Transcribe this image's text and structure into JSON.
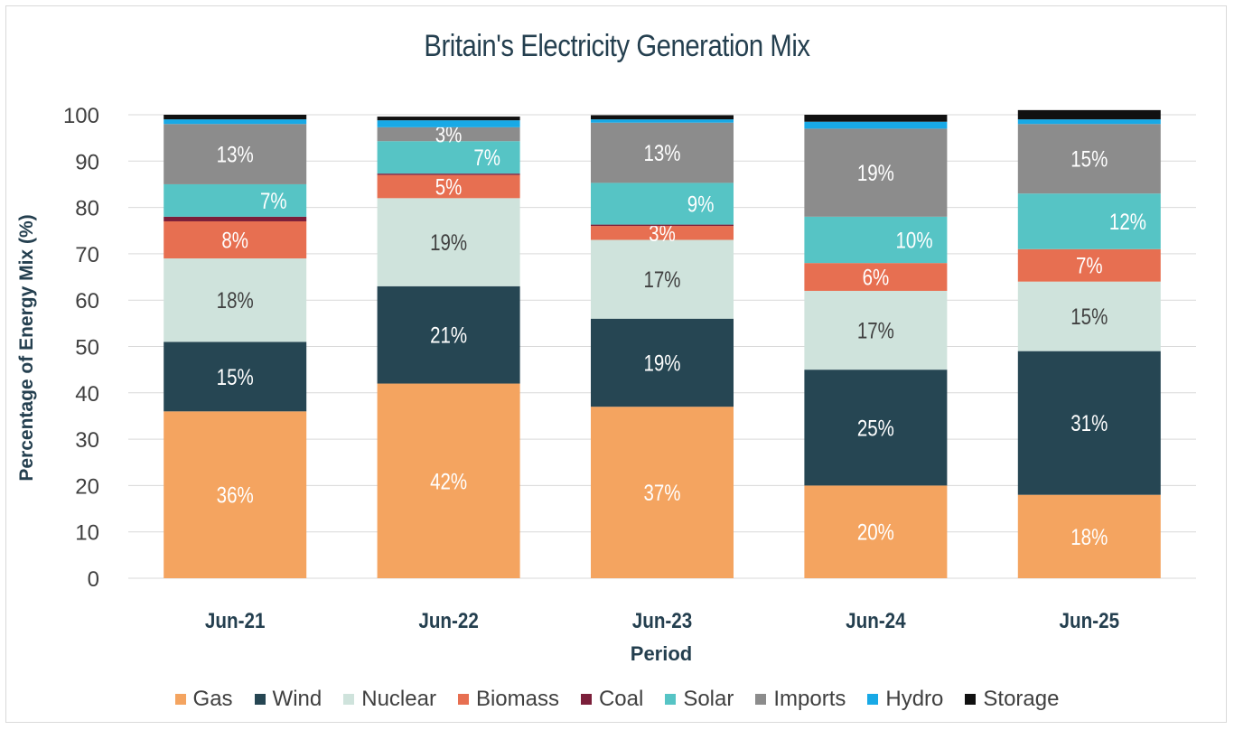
{
  "chart_data": {
    "type": "bar",
    "stacked": true,
    "title": "Britain's Electricity Generation Mix",
    "xlabel": "Period",
    "ylabel": "Percentage of Energy Mix (%)",
    "ylim": [
      0,
      100
    ],
    "yticks": [
      0,
      10,
      20,
      30,
      40,
      50,
      60,
      70,
      80,
      90,
      100
    ],
    "grid": true,
    "legend_position": "bottom",
    "categories": [
      "Jun-21",
      "Jun-22",
      "Jun-23",
      "Jun-24",
      "Jun-25"
    ],
    "series": [
      {
        "name": "Gas",
        "color": "#f4a460",
        "values": [
          36,
          42,
          37,
          20,
          18
        ],
        "labels": [
          "36%",
          "42%",
          "37%",
          "20%",
          "18%"
        ],
        "label_color": "#ffffff"
      },
      {
        "name": "Wind",
        "color": "#264653",
        "values": [
          15,
          21,
          19,
          25,
          31
        ],
        "labels": [
          "15%",
          "21%",
          "19%",
          "25%",
          "31%"
        ],
        "label_color": "#ffffff"
      },
      {
        "name": "Nuclear",
        "color": "#cfe3dc",
        "values": [
          18,
          19,
          17,
          17,
          15
        ],
        "labels": [
          "18%",
          "19%",
          "17%",
          "17%",
          "15%"
        ],
        "label_color": "#404040"
      },
      {
        "name": "Biomass",
        "color": "#e76f51",
        "values": [
          8,
          5,
          3,
          6,
          7
        ],
        "labels": [
          "8%",
          "5%",
          "3%",
          "6%",
          "7%"
        ],
        "label_color": "#ffffff"
      },
      {
        "name": "Coal",
        "color": "#7b1f3a",
        "values": [
          1,
          0.3,
          0.3,
          0,
          0
        ],
        "labels": [
          "",
          "",
          "",
          "",
          ""
        ],
        "label_color": "#ffffff"
      },
      {
        "name": "Solar",
        "color": "#56c4c5",
        "values": [
          7,
          7,
          9,
          10,
          12
        ],
        "labels": [
          "7%",
          "7%",
          "9%",
          "10%",
          "12%"
        ],
        "label_color": "#ffffff"
      },
      {
        "name": "Imports",
        "color": "#8c8c8c",
        "values": [
          13,
          3,
          13,
          19,
          15
        ],
        "labels": [
          "13%",
          "3%",
          "13%",
          "19%",
          "15%"
        ],
        "label_color": "#ffffff"
      },
      {
        "name": "Hydro",
        "color": "#18a9e6",
        "values": [
          1,
          1.5,
          0.7,
          1.5,
          1
        ],
        "labels": [
          "",
          "",
          "",
          "",
          ""
        ],
        "label_color": "#ffffff"
      },
      {
        "name": "Storage",
        "color": "#111111",
        "values": [
          1,
          0.8,
          0.9,
          1.5,
          2
        ],
        "labels": [
          "",
          "",
          "",
          "",
          ""
        ],
        "label_color": "#ffffff"
      }
    ]
  }
}
